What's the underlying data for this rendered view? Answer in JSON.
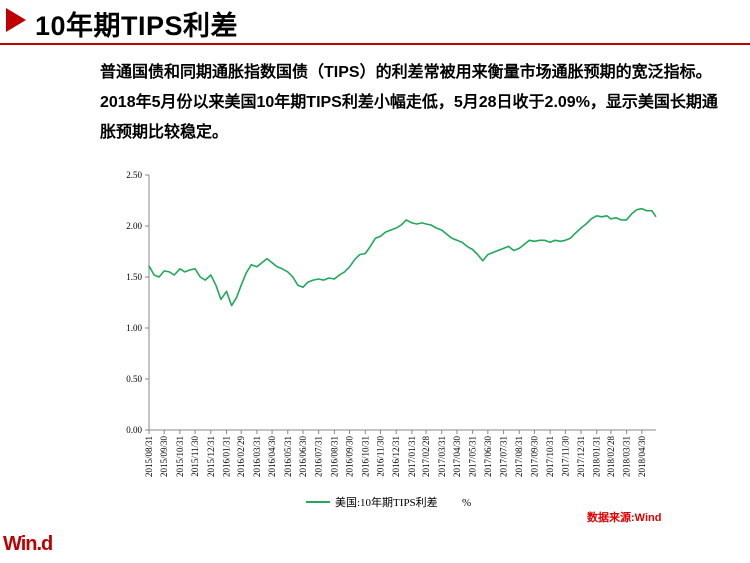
{
  "slide": {
    "title": "10年期TIPS利差",
    "body": "普通国债和同期通胀指数国债（TIPS）的利差常被用来衡量市场通胀预期的宽泛指标。2018年5月份以来美国10年期TIPS利差小幅走低，5月28日收于2.09%，显示美国长期通胀预期比较稳定。",
    "source": "数据来源:Wind",
    "logo": "Win.d"
  },
  "colors": {
    "accent": "#c00000",
    "series": "#21a95b",
    "source": "#e00000"
  },
  "chart_data": {
    "type": "line",
    "title": "",
    "xlabel": "",
    "ylabel": "",
    "ylim": [
      0,
      2.5
    ],
    "yticks": [
      "0.00",
      "0.50",
      "1.00",
      "1.50",
      "2.00",
      "2.50"
    ],
    "xticks": [
      "2015/08/31",
      "2015/09/30",
      "2015/10/31",
      "2015/11/30",
      "2015/12/31",
      "2016/01/31",
      "2016/02/29",
      "2016/03/31",
      "2016/04/30",
      "2016/05/31",
      "2016/06/30",
      "2016/07/31",
      "2016/08/31",
      "2016/09/30",
      "2016/10/31",
      "2016/11/30",
      "2016/12/31",
      "2017/01/31",
      "2017/02/28",
      "2017/03/31",
      "2017/04/30",
      "2017/05/31",
      "2017/06/30",
      "2017/07/31",
      "2017/08/31",
      "2017/09/30",
      "2017/10/31",
      "2017/11/30",
      "2017/12/31",
      "2018/01/31",
      "2018/02/28",
      "2018/03/31",
      "2018/04/30"
    ],
    "legend": "bottom",
    "grid": false,
    "series": [
      {
        "name": "美国:10年期TIPS利差",
        "unit": "%",
        "points": [
          [
            "2015/08/31",
            1.61
          ],
          [
            "2015/09/10",
            1.52
          ],
          [
            "2015/09/20",
            1.5
          ],
          [
            "2015/09/30",
            1.56
          ],
          [
            "2015/10/10",
            1.55
          ],
          [
            "2015/10/20",
            1.52
          ],
          [
            "2015/10/31",
            1.58
          ],
          [
            "2015/11/10",
            1.55
          ],
          [
            "2015/11/20",
            1.57
          ],
          [
            "2015/11/30",
            1.58
          ],
          [
            "2015/12/10",
            1.5
          ],
          [
            "2015/12/20",
            1.47
          ],
          [
            "2015/12/31",
            1.52
          ],
          [
            "2016/01/10",
            1.42
          ],
          [
            "2016/01/20",
            1.28
          ],
          [
            "2016/01/31",
            1.36
          ],
          [
            "2016/02/10",
            1.22
          ],
          [
            "2016/02/20",
            1.3
          ],
          [
            "2016/02/29",
            1.42
          ],
          [
            "2016/03/10",
            1.54
          ],
          [
            "2016/03/20",
            1.62
          ],
          [
            "2016/03/31",
            1.6
          ],
          [
            "2016/04/10",
            1.64
          ],
          [
            "2016/04/20",
            1.68
          ],
          [
            "2016/04/30",
            1.64
          ],
          [
            "2016/05/10",
            1.6
          ],
          [
            "2016/05/20",
            1.58
          ],
          [
            "2016/05/31",
            1.55
          ],
          [
            "2016/06/10",
            1.5
          ],
          [
            "2016/06/20",
            1.42
          ],
          [
            "2016/06/30",
            1.4
          ],
          [
            "2016/07/10",
            1.45
          ],
          [
            "2016/07/20",
            1.47
          ],
          [
            "2016/07/31",
            1.48
          ],
          [
            "2016/08/10",
            1.47
          ],
          [
            "2016/08/20",
            1.49
          ],
          [
            "2016/08/31",
            1.48
          ],
          [
            "2016/09/10",
            1.52
          ],
          [
            "2016/09/20",
            1.55
          ],
          [
            "2016/09/30",
            1.6
          ],
          [
            "2016/10/10",
            1.67
          ],
          [
            "2016/10/20",
            1.72
          ],
          [
            "2016/10/31",
            1.73
          ],
          [
            "2016/11/10",
            1.8
          ],
          [
            "2016/11/20",
            1.88
          ],
          [
            "2016/11/30",
            1.9
          ],
          [
            "2016/12/10",
            1.94
          ],
          [
            "2016/12/20",
            1.96
          ],
          [
            "2016/12/31",
            1.98
          ],
          [
            "2017/01/10",
            2.01
          ],
          [
            "2017/01/20",
            2.06
          ],
          [
            "2017/01/31",
            2.03
          ],
          [
            "2017/02/10",
            2.02
          ],
          [
            "2017/02/20",
            2.03
          ],
          [
            "2017/02/28",
            2.02
          ],
          [
            "2017/03/10",
            2.01
          ],
          [
            "2017/03/20",
            1.98
          ],
          [
            "2017/03/31",
            1.96
          ],
          [
            "2017/04/10",
            1.92
          ],
          [
            "2017/04/20",
            1.88
          ],
          [
            "2017/04/30",
            1.86
          ],
          [
            "2017/05/10",
            1.84
          ],
          [
            "2017/05/20",
            1.8
          ],
          [
            "2017/05/31",
            1.77
          ],
          [
            "2017/06/10",
            1.72
          ],
          [
            "2017/06/20",
            1.66
          ],
          [
            "2017/06/30",
            1.72
          ],
          [
            "2017/07/10",
            1.74
          ],
          [
            "2017/07/20",
            1.76
          ],
          [
            "2017/07/31",
            1.78
          ],
          [
            "2017/08/10",
            1.8
          ],
          [
            "2017/08/20",
            1.76
          ],
          [
            "2017/08/31",
            1.78
          ],
          [
            "2017/09/10",
            1.82
          ],
          [
            "2017/09/20",
            1.86
          ],
          [
            "2017/09/30",
            1.85
          ],
          [
            "2017/10/10",
            1.86
          ],
          [
            "2017/10/20",
            1.86
          ],
          [
            "2017/10/31",
            1.84
          ],
          [
            "2017/11/10",
            1.86
          ],
          [
            "2017/11/20",
            1.85
          ],
          [
            "2017/11/30",
            1.86
          ],
          [
            "2017/12/10",
            1.88
          ],
          [
            "2017/12/20",
            1.93
          ],
          [
            "2017/12/31",
            1.98
          ],
          [
            "2018/01/10",
            2.02
          ],
          [
            "2018/01/20",
            2.07
          ],
          [
            "2018/01/31",
            2.1
          ],
          [
            "2018/02/10",
            2.09
          ],
          [
            "2018/02/20",
            2.1
          ],
          [
            "2018/02/28",
            2.07
          ],
          [
            "2018/03/10",
            2.08
          ],
          [
            "2018/03/20",
            2.06
          ],
          [
            "2018/03/31",
            2.06
          ],
          [
            "2018/04/10",
            2.12
          ],
          [
            "2018/04/20",
            2.16
          ],
          [
            "2018/04/30",
            2.17
          ],
          [
            "2018/05/10",
            2.15
          ],
          [
            "2018/05/20",
            2.15
          ],
          [
            "2018/05/28",
            2.09
          ]
        ]
      }
    ]
  }
}
